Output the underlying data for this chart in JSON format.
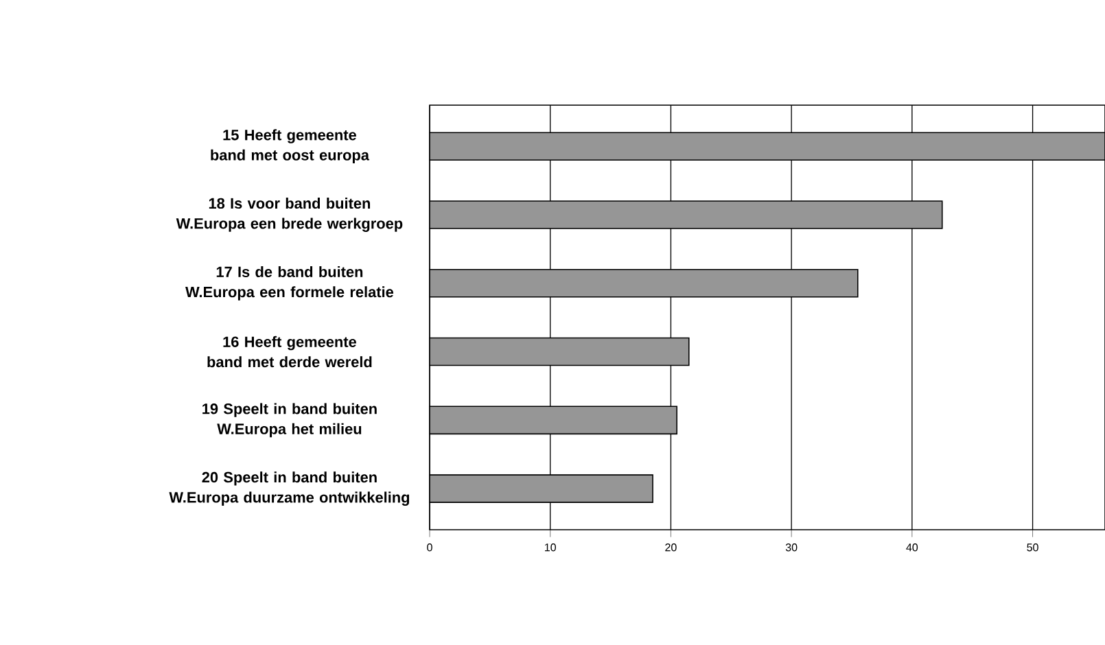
{
  "chart_data": {
    "type": "bar",
    "orientation": "horizontal",
    "categories": [
      "15 Heeft gemeente band met oost europa",
      "18 Is voor band buiten W.Europa een brede werkgroep",
      "17 Is de band buiten W.Europa een formele relatie",
      "16 Heeft gemeente band met derde wereld",
      "19 Speelt in band buiten W.Europa het milieu",
      "20 Speelt in band buiten W.Europa duurzame ontwikkeling"
    ],
    "values": [
      56,
      42.5,
      35.5,
      21.5,
      20.5,
      18.5
    ],
    "color": "#969696",
    "xlim": [
      0,
      56
    ],
    "xticks": [
      0,
      10,
      20,
      30,
      40,
      50
    ],
    "grid": "x"
  }
}
